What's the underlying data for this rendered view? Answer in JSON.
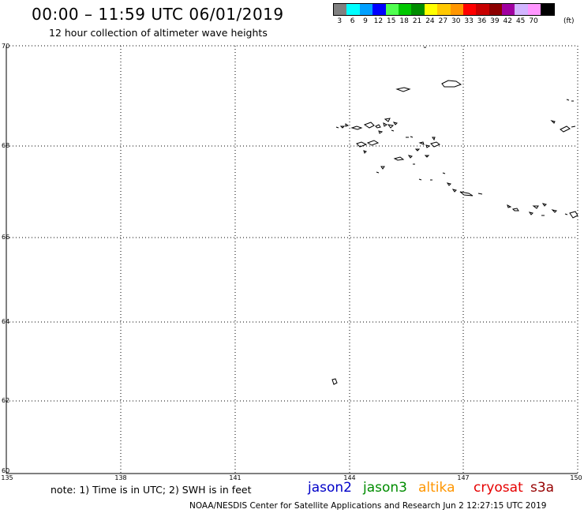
{
  "header": {
    "title": "00:00 – 11:59 UTC 06/01/2019",
    "subtitle": "12 hour collection of altimeter wave heights"
  },
  "legend": {
    "unit": "(ft)",
    "items": [
      {
        "label": "3",
        "color": "#808080"
      },
      {
        "label": "6",
        "color": "#00ffff"
      },
      {
        "label": "9",
        "color": "#00a0ff"
      },
      {
        "label": "12",
        "color": "#0000ff"
      },
      {
        "label": "15",
        "color": "#50ff50"
      },
      {
        "label": "18",
        "color": "#00c800"
      },
      {
        "label": "21",
        "color": "#008c00"
      },
      {
        "label": "24",
        "color": "#ffff00"
      },
      {
        "label": "27",
        "color": "#ffc800"
      },
      {
        "label": "30",
        "color": "#ff9600"
      },
      {
        "label": "33",
        "color": "#ff0000"
      },
      {
        "label": "36",
        "color": "#c80000"
      },
      {
        "label": "39",
        "color": "#8c0000"
      },
      {
        "label": "42",
        "color": "#a000a0"
      },
      {
        "label": "45",
        "color": "#d2b4ff"
      },
      {
        "label": "70",
        "color": "#ff96ff"
      },
      {
        "label": "",
        "color": "#000000"
      }
    ]
  },
  "map": {
    "lat_labels": [
      "70",
      "68",
      "66",
      "64",
      "62",
      "60"
    ],
    "lon_labels": [
      "135",
      "138",
      "141",
      "144",
      "147",
      "150"
    ]
  },
  "footer": {
    "note": "note: 1) Time is in UTC; 2) SWH is in feet",
    "satellites": [
      {
        "name": "jason2",
        "color": "#0000c8"
      },
      {
        "name": "jason3",
        "color": "#008c00"
      },
      {
        "name": "altika",
        "color": "#ff9600"
      },
      {
        "name": "cryosat",
        "color": "#e60000"
      },
      {
        "name": "s3a",
        "color": "#960000"
      }
    ],
    "credit": "NOAA/NESDIS Center for Satellite Applications and Research   Jun  2 12:27:15 UTC 2019"
  }
}
